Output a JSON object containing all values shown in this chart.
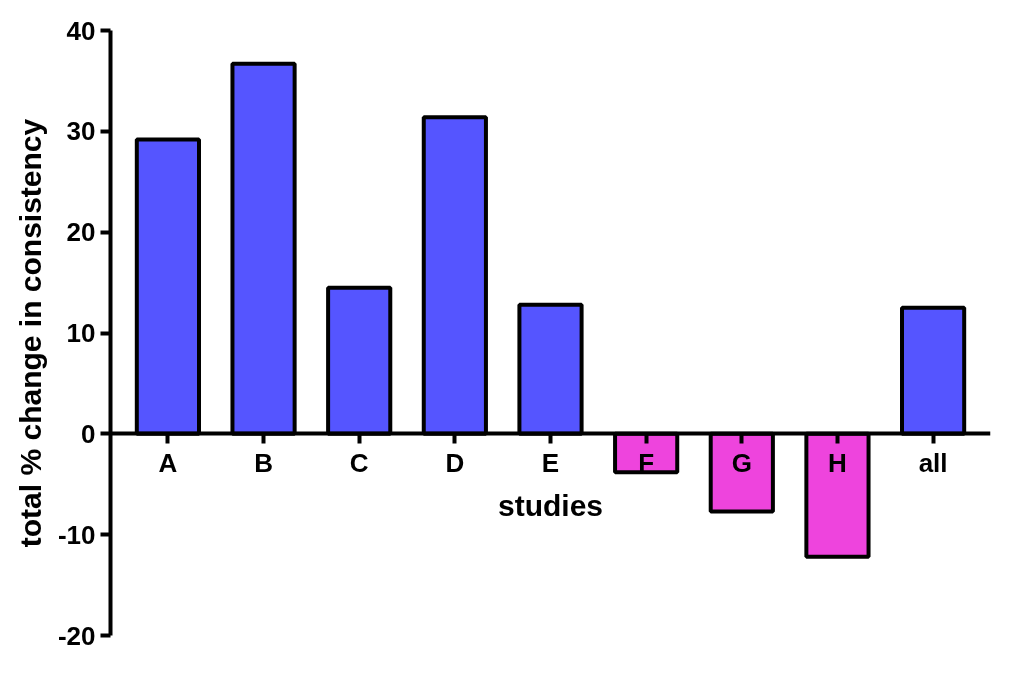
{
  "chart_data": {
    "type": "bar",
    "xlabel": "studies",
    "ylabel": "total % change in consistency",
    "categories": [
      "A",
      "B",
      "C",
      "D",
      "E",
      "F",
      "G",
      "H",
      "all"
    ],
    "values": [
      29.2,
      36.7,
      14.5,
      31.4,
      12.8,
      -3.8,
      -7.7,
      -12.2,
      12.5
    ],
    "colors": [
      "#5555ff",
      "#5555ff",
      "#5555ff",
      "#5555ff",
      "#5555ff",
      "#ee44dd",
      "#ee44dd",
      "#ee44dd",
      "#5555ff"
    ],
    "ylim": [
      -20,
      40
    ],
    "yticks": [
      -20,
      -10,
      0,
      10,
      20,
      30,
      40
    ],
    "grid": false
  }
}
